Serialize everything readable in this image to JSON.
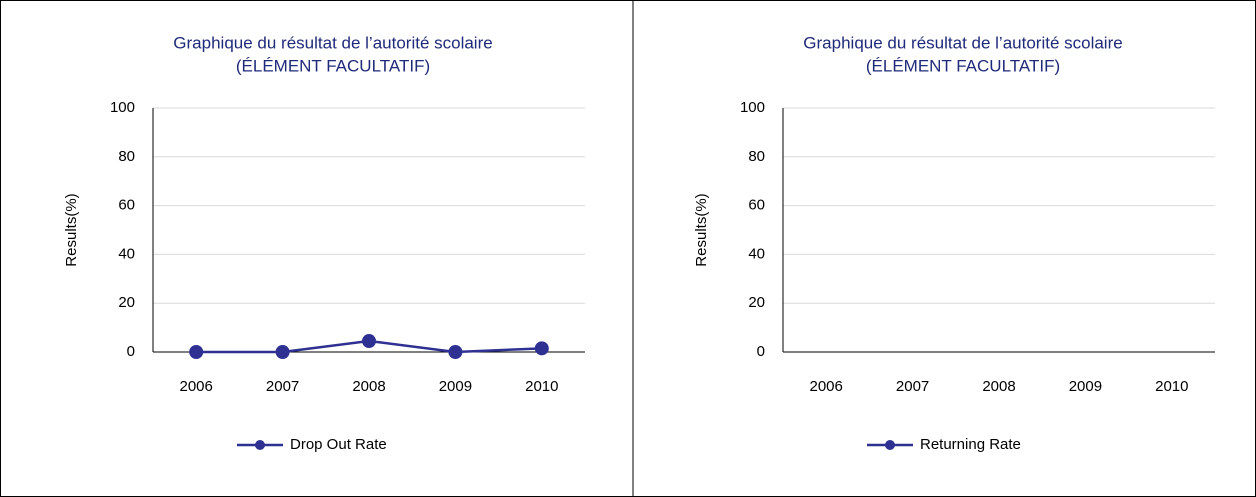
{
  "chart_data": [
    {
      "type": "line",
      "title": "Graphique du résultat de l’autorité scolaire",
      "subtitle": "(ÉLÉMENT FACULTATIF)",
      "ylabel": "Results(%)",
      "categories": [
        "2006",
        "2007",
        "2008",
        "2009",
        "2010"
      ],
      "series": [
        {
          "name": "Drop Out Rate",
          "color": "#2e3192",
          "values": [
            0,
            0,
            4.5,
            0,
            1.5
          ]
        }
      ],
      "ylim": [
        0,
        100
      ],
      "yticks": [
        0,
        20,
        40,
        60,
        80,
        100
      ],
      "grid": true,
      "legend": "bottom"
    },
    {
      "type": "line",
      "title": "Graphique du résultat de l’autorité scolaire",
      "subtitle": "(ÉLÉMENT FACULTATIF)",
      "ylabel": "Results(%)",
      "categories": [
        "2006",
        "2007",
        "2008",
        "2009",
        "2010"
      ],
      "series": [
        {
          "name": "Returning Rate",
          "color": "#2e3192",
          "values": [
            null,
            null,
            null,
            null,
            null
          ]
        }
      ],
      "ylim": [
        0,
        100
      ],
      "yticks": [
        0,
        20,
        40,
        60,
        80,
        100
      ],
      "grid": true,
      "legend": "bottom"
    }
  ]
}
